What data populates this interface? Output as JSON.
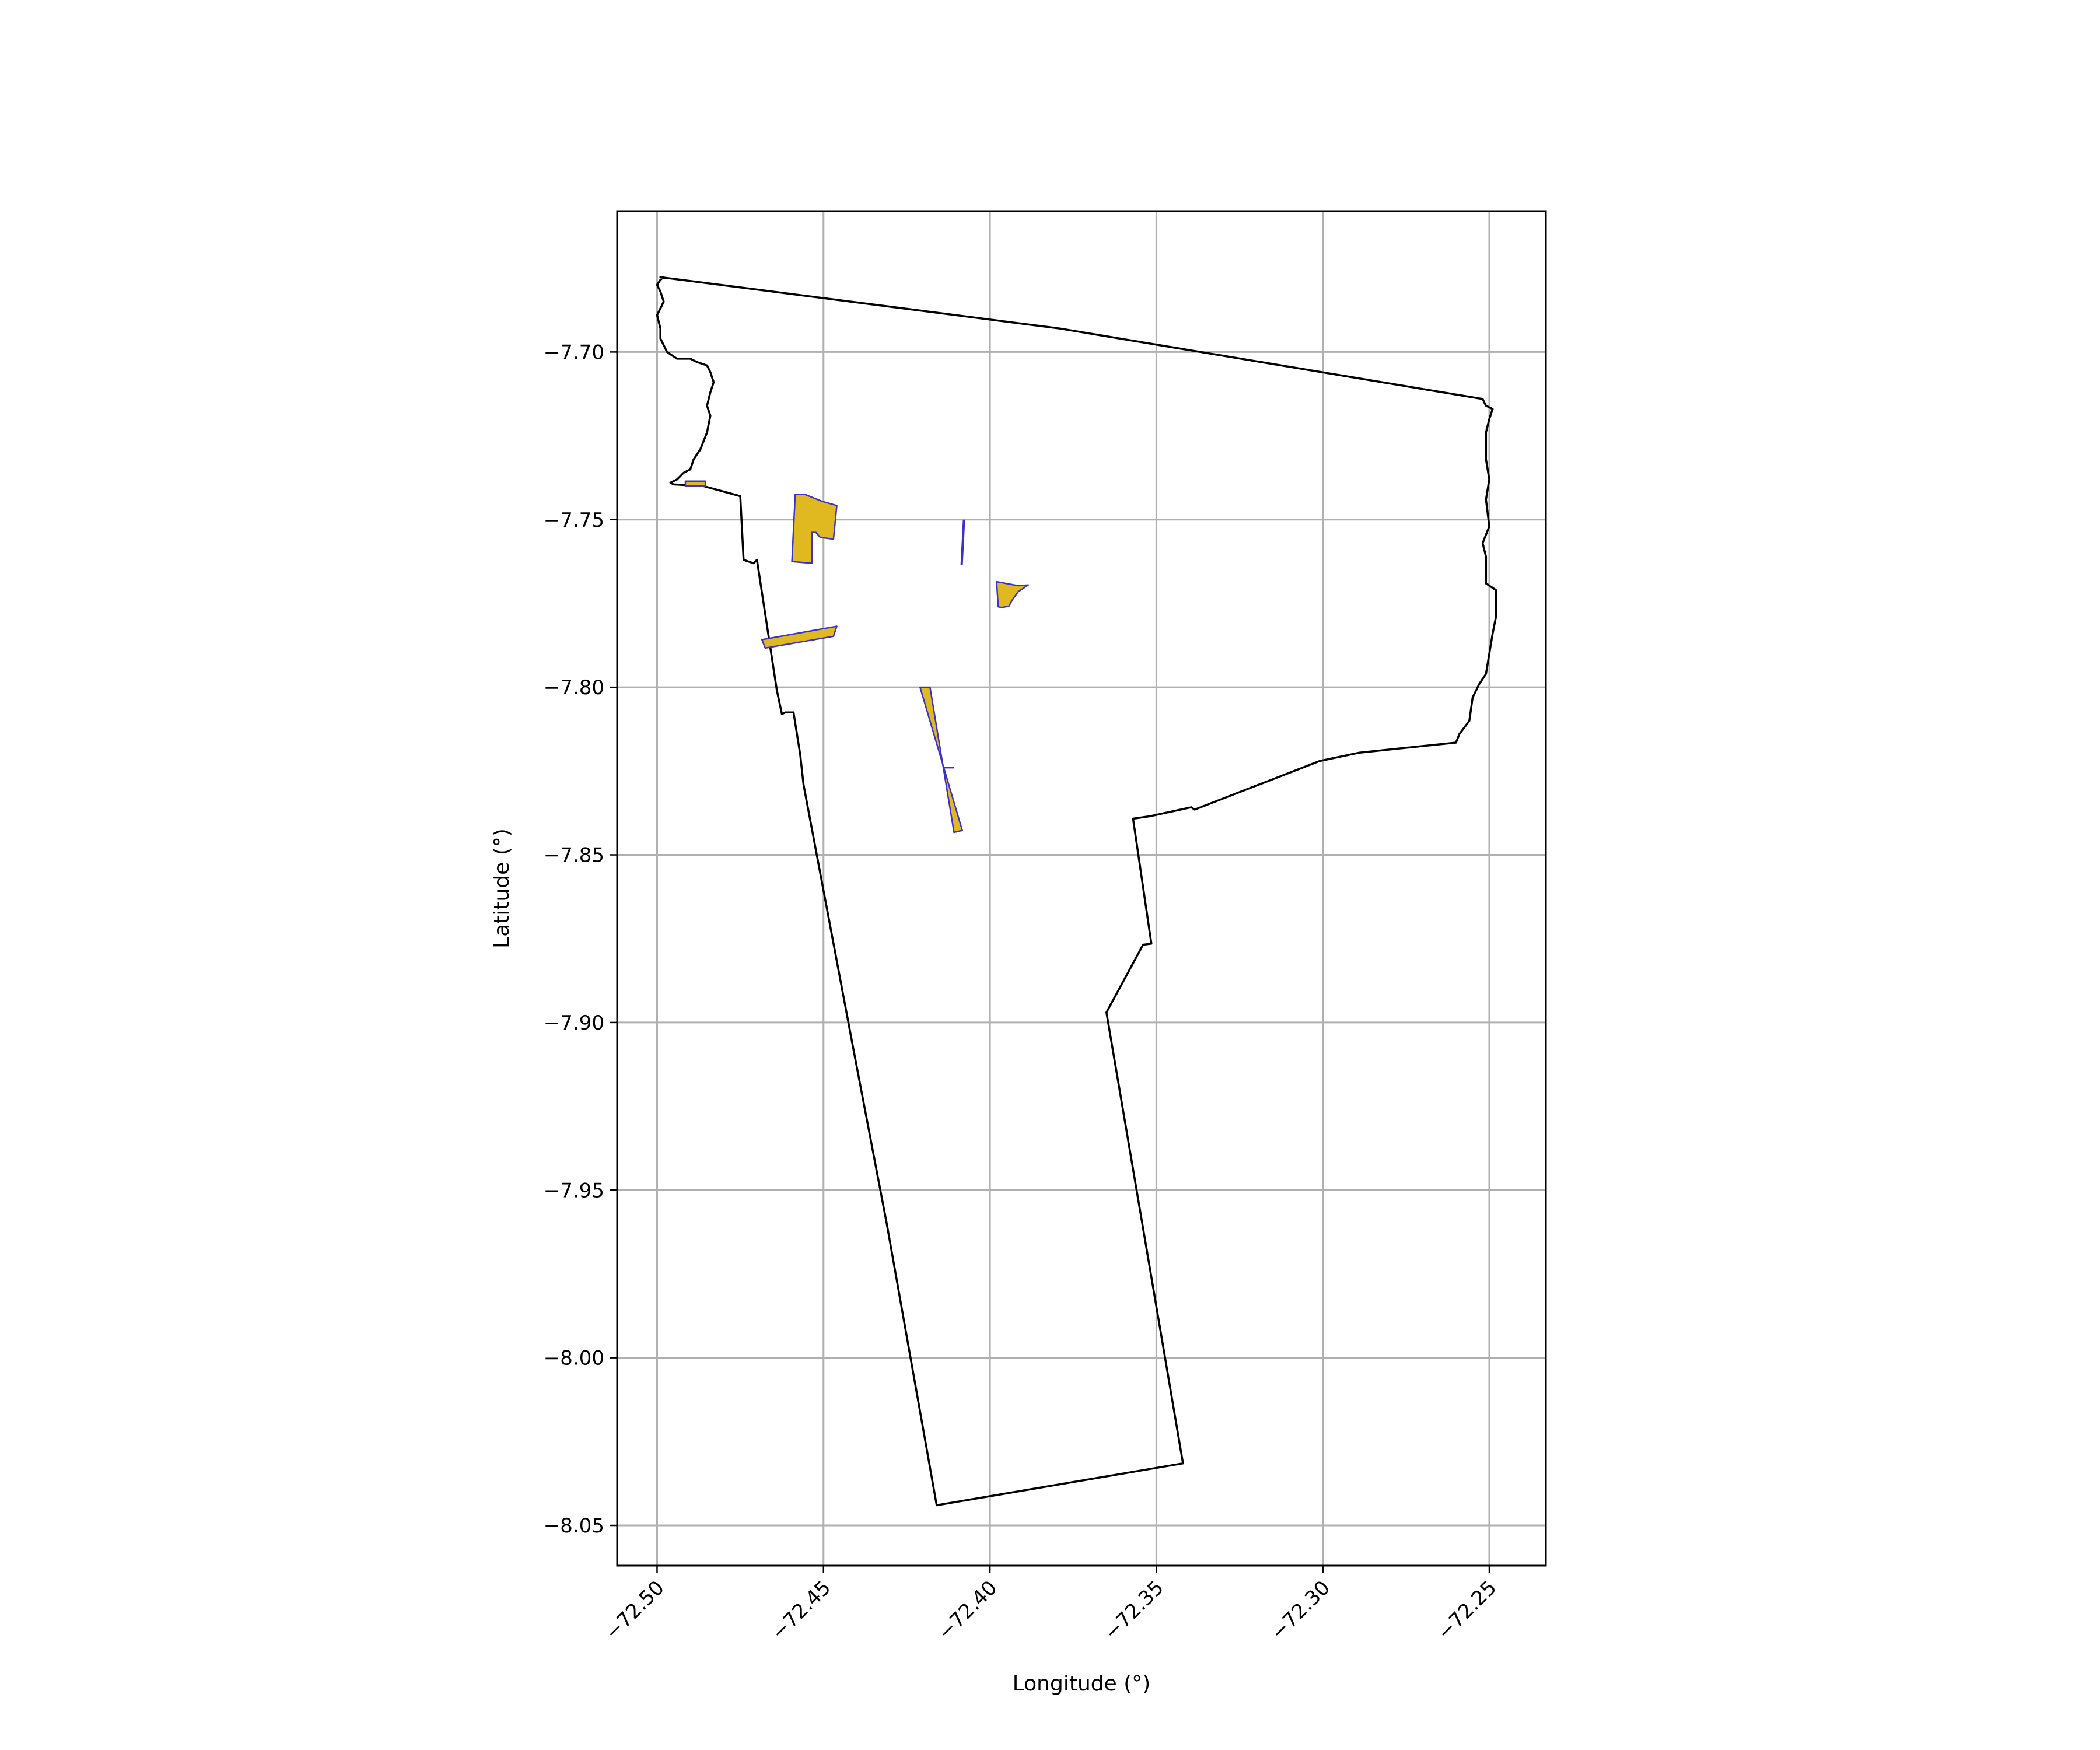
{
  "chart_data": {
    "type": "map",
    "title": "",
    "xlabel": "Longitude (°)",
    "ylabel": "Latitude (°)",
    "xlim": [
      -72.512,
      -72.233
    ],
    "ylim": [
      -8.062,
      -7.658
    ],
    "grid": true,
    "xticks": [
      -72.5,
      -72.45,
      -72.4,
      -72.35,
      -72.3,
      -72.25
    ],
    "xtick_labels": [
      "−72.50",
      "−72.45",
      "−72.40",
      "−72.35",
      "−72.30",
      "−72.25"
    ],
    "yticks": [
      -7.7,
      -7.75,
      -7.8,
      -7.85,
      -7.9,
      -7.95,
      -8.0,
      -8.05
    ],
    "ytick_labels": [
      "−7.70",
      "−7.75",
      "−7.80",
      "−7.85",
      "−7.90",
      "−7.95",
      "−8.00",
      "−8.05"
    ],
    "colors": {
      "boundary": "#000000",
      "area_fill": "#e0b921",
      "area_edge": "#3b32c8",
      "grid": "#b0b0b0"
    },
    "boundary": [
      [
        -72.499,
        -7.6777
      ],
      [
        -72.379,
        -7.693
      ],
      [
        -72.252,
        -7.714
      ],
      [
        -72.251,
        -7.716
      ],
      [
        -72.249,
        -7.717
      ],
      [
        -72.25,
        -7.72
      ],
      [
        -72.251,
        -7.724
      ],
      [
        -72.251,
        -7.732
      ],
      [
        -72.25,
        -7.738
      ],
      [
        -72.251,
        -7.744
      ],
      [
        -72.25,
        -7.752
      ],
      [
        -72.252,
        -7.757
      ],
      [
        -72.251,
        -7.761
      ],
      [
        -72.251,
        -7.769
      ],
      [
        -72.248,
        -7.771
      ],
      [
        -72.248,
        -7.779
      ],
      [
        -72.249,
        -7.784
      ],
      [
        -72.25,
        -7.79
      ],
      [
        -72.251,
        -7.796
      ],
      [
        -72.253,
        -7.799
      ],
      [
        -72.255,
        -7.803
      ],
      [
        -72.256,
        -7.81
      ],
      [
        -72.259,
        -7.814
      ],
      [
        -72.26,
        -7.8165
      ],
      [
        -72.289,
        -7.8195
      ],
      [
        -72.301,
        -7.822
      ],
      [
        -72.3385,
        -7.8365
      ],
      [
        -72.3395,
        -7.8358
      ],
      [
        -72.352,
        -7.8385
      ],
      [
        -72.357,
        -7.8392
      ],
      [
        -72.3515,
        -7.8765
      ],
      [
        -72.354,
        -7.8768
      ],
      [
        -72.365,
        -7.897
      ],
      [
        -72.342,
        -8.0315
      ],
      [
        -72.416,
        -8.044
      ],
      [
        -72.431,
        -7.96
      ],
      [
        -72.441,
        -7.908
      ],
      [
        -72.456,
        -7.829
      ],
      [
        -72.457,
        -7.82
      ],
      [
        -72.459,
        -7.8075
      ],
      [
        -72.4615,
        -7.8075
      ],
      [
        -72.4625,
        -7.808
      ],
      [
        -72.464,
        -7.801
      ],
      [
        -72.47,
        -7.762
      ],
      [
        -72.471,
        -7.763
      ],
      [
        -72.474,
        -7.762
      ],
      [
        -72.475,
        -7.743
      ],
      [
        -72.486,
        -7.74
      ],
      [
        -72.495,
        -7.7395
      ],
      [
        -72.496,
        -7.739
      ],
      [
        -72.494,
        -7.738
      ],
      [
        -72.492,
        -7.736
      ],
      [
        -72.49,
        -7.735
      ],
      [
        -72.489,
        -7.732
      ],
      [
        -72.487,
        -7.729
      ],
      [
        -72.485,
        -7.724
      ],
      [
        -72.484,
        -7.719
      ],
      [
        -72.485,
        -7.716
      ],
      [
        -72.484,
        -7.712
      ],
      [
        -72.483,
        -7.709
      ],
      [
        -72.484,
        -7.706
      ],
      [
        -72.485,
        -7.704
      ],
      [
        -72.488,
        -7.703
      ],
      [
        -72.49,
        -7.702
      ],
      [
        -72.494,
        -7.702
      ],
      [
        -72.497,
        -7.7
      ],
      [
        -72.499,
        -7.696
      ],
      [
        -72.499,
        -7.693
      ],
      [
        -72.5,
        -7.689
      ],
      [
        -72.498,
        -7.685
      ],
      [
        -72.499,
        -7.682
      ],
      [
        -72.5,
        -7.68
      ],
      [
        -72.499,
        -7.6785
      ],
      [
        -72.498,
        -7.6777
      ]
    ],
    "areas": [
      [
        [
          -72.4915,
          -7.7385
        ],
        [
          -72.4855,
          -7.7385
        ],
        [
          -72.4855,
          -7.74
        ],
        [
          -72.4915,
          -7.74
        ]
      ],
      [
        [
          -72.4585,
          -7.7425
        ],
        [
          -72.4555,
          -7.7425
        ],
        [
          -72.4505,
          -7.7445
        ],
        [
          -72.446,
          -7.7458
        ],
        [
          -72.447,
          -7.7558
        ],
        [
          -72.451,
          -7.7553
        ],
        [
          -72.4523,
          -7.7538
        ],
        [
          -72.4535,
          -7.7538
        ],
        [
          -72.4535,
          -7.763
        ],
        [
          -72.4595,
          -7.7625
        ]
      ],
      [
        [
          -72.4685,
          -7.7858
        ],
        [
          -72.446,
          -7.7818
        ],
        [
          -72.447,
          -7.7848
        ],
        [
          -72.4675,
          -7.7883
        ]
      ],
      [
        [
          -72.398,
          -7.7685
        ],
        [
          -72.3915,
          -7.7697
        ],
        [
          -72.3885,
          -7.7695
        ],
        [
          -72.3915,
          -7.7715
        ],
        [
          -72.3932,
          -7.7738
        ],
        [
          -72.3943,
          -7.7758
        ],
        [
          -72.3965,
          -7.7762
        ],
        [
          -72.3975,
          -7.776
        ]
      ],
      [
        [
          -72.421,
          -7.8
        ],
        [
          -72.418,
          -7.8
        ],
        [
          -72.4108,
          -7.8433
        ],
        [
          -72.4083,
          -7.8427
        ]
      ]
    ],
    "areas_note_skip": [],
    "lines": [
      [
        [
          -72.4078,
          -7.75
        ],
        [
          -72.4085,
          -7.7635
        ]
      ]
    ],
    "area_dividers": [
      [
        [
          -72.414,
          -7.824
        ],
        [
          -72.4108,
          -7.824
        ]
      ]
    ]
  }
}
